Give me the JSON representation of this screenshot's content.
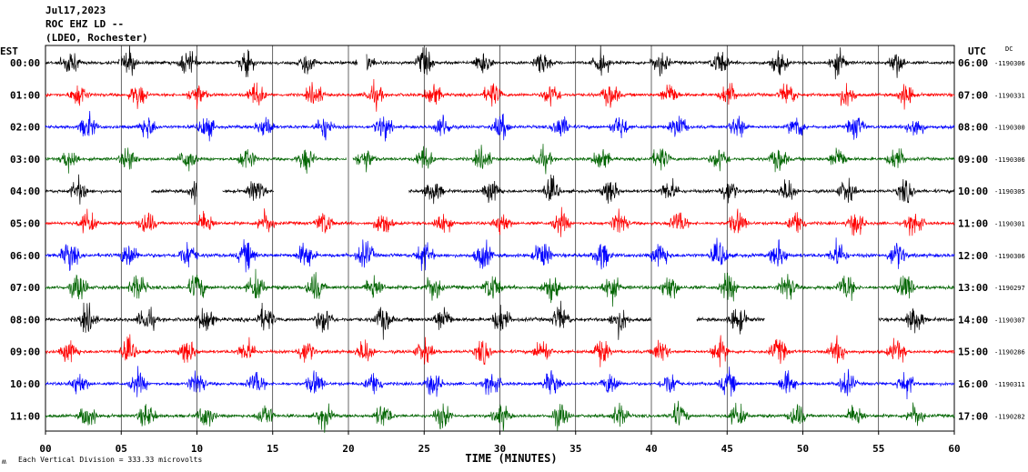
{
  "header": {
    "date": "Jul17,2023",
    "station": "ROC EHZ LD --",
    "network": "(LDEO, Rochester)"
  },
  "labels": {
    "left_zone": "EST",
    "right_zone": "UTC",
    "dc": "DC",
    "xlabel": "TIME (MINUTES)",
    "scale_note": "Each Vertical Division =  333.33 microvolts",
    "corner_mark": "ʍ"
  },
  "colors": {
    "black": "#000000",
    "red": "#ff0000",
    "blue": "#0000ff",
    "green": "#006400",
    "grid": "#000000"
  },
  "chart_data": {
    "type": "line",
    "title": "ROC EHZ LD --",
    "xlabel": "TIME (MINUTES)",
    "xlim": [
      0,
      60
    ],
    "x_ticks": [
      "00",
      "05",
      "10",
      "15",
      "20",
      "25",
      "30",
      "35",
      "40",
      "45",
      "50",
      "55",
      "60"
    ],
    "rows": [
      {
        "est": "00:00",
        "utc": "06:00",
        "dc": "-1190306",
        "color": "black",
        "gaps": [
          [
            4.9,
            5.0
          ],
          [
            20.6,
            21.2
          ]
        ]
      },
      {
        "est": "01:00",
        "utc": "07:00",
        "dc": "-1190331",
        "color": "red",
        "gaps": []
      },
      {
        "est": "02:00",
        "utc": "08:00",
        "dc": "-1190300",
        "color": "blue",
        "gaps": []
      },
      {
        "est": "03:00",
        "utc": "09:00",
        "dc": "-1190306",
        "color": "green",
        "gaps": [
          [
            19.9,
            20.3
          ]
        ]
      },
      {
        "est": "04:00",
        "utc": "10:00",
        "dc": "-1190305",
        "color": "black",
        "gaps": [
          [
            5.0,
            7.0
          ],
          [
            10.0,
            11.7
          ],
          [
            15.1,
            24.0
          ]
        ]
      },
      {
        "est": "05:00",
        "utc": "11:00",
        "dc": "-1190301",
        "color": "red",
        "gaps": []
      },
      {
        "est": "06:00",
        "utc": "12:00",
        "dc": "-1190306",
        "color": "blue",
        "gaps": []
      },
      {
        "est": "07:00",
        "utc": "13:00",
        "dc": "-1190297",
        "color": "green",
        "gaps": []
      },
      {
        "est": "08:00",
        "utc": "14:00",
        "dc": "-1190307",
        "color": "black",
        "gaps": [
          [
            40.0,
            43.0
          ],
          [
            47.5,
            55.0
          ]
        ]
      },
      {
        "est": "09:00",
        "utc": "15:00",
        "dc": "-1190286",
        "color": "red",
        "gaps": []
      },
      {
        "est": "10:00",
        "utc": "16:00",
        "dc": "-1190311",
        "color": "blue",
        "gaps": []
      },
      {
        "est": "11:00",
        "utc": "17:00",
        "dc": "-1190282",
        "color": "green",
        "gaps": []
      }
    ]
  }
}
